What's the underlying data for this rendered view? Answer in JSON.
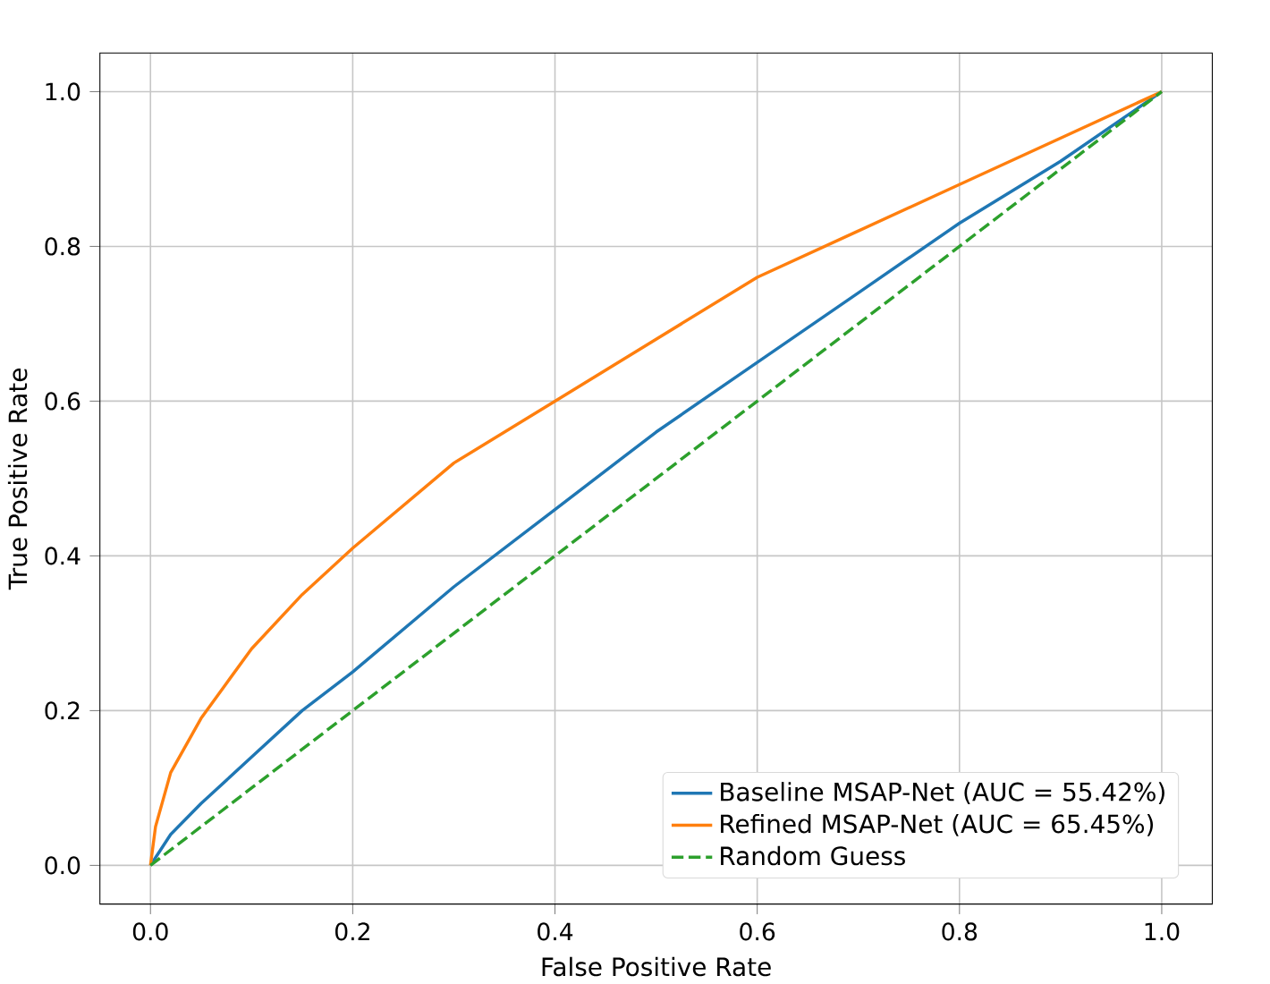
{
  "chart_data": {
    "type": "line",
    "xlabel": "False Positive Rate",
    "ylabel": "True Positive Rate",
    "xlim": [
      -0.05,
      1.05
    ],
    "ylim": [
      -0.05,
      1.05
    ],
    "xticks": [
      {
        "value": 0,
        "label": "0.0"
      },
      {
        "value": 0.2,
        "label": "0.2"
      },
      {
        "value": 0.4,
        "label": "0.4"
      },
      {
        "value": 0.6,
        "label": "0.6"
      },
      {
        "value": 0.8,
        "label": "0.8"
      },
      {
        "value": 1,
        "label": "1.0"
      }
    ],
    "yticks": [
      {
        "value": 0,
        "label": "0.0"
      },
      {
        "value": 0.2,
        "label": "0.2"
      },
      {
        "value": 0.4,
        "label": "0.4"
      },
      {
        "value": 0.6,
        "label": "0.6"
      },
      {
        "value": 0.8,
        "label": "0.8"
      },
      {
        "value": 1,
        "label": "1.0"
      }
    ],
    "grid": true,
    "legend": "bottom right",
    "series": [
      {
        "name": "Baseline MSAP-Net (AUC = 55.42%)",
        "color": "#1f77b4",
        "line_style": "solid",
        "x": [
          0,
          0.005,
          0.02,
          0.05,
          0.1,
          0.15,
          0.2,
          0.3,
          0.4,
          0.5,
          0.6,
          0.7,
          0.8,
          0.9,
          1
        ],
        "values": [
          0,
          0.01,
          0.04,
          0.08,
          0.14,
          0.2,
          0.25,
          0.36,
          0.46,
          0.56,
          0.65,
          0.74,
          0.83,
          0.91,
          1
        ]
      },
      {
        "name": "Refined MSAP-Net (AUC = 65.45%)",
        "color": "#ff7f0e",
        "line_style": "solid",
        "x": [
          0,
          0.005,
          0.02,
          0.05,
          0.1,
          0.15,
          0.2,
          0.3,
          0.4,
          0.5,
          0.6,
          0.7,
          0.8,
          0.9,
          1
        ],
        "values": [
          0,
          0.05,
          0.12,
          0.19,
          0.28,
          0.35,
          0.41,
          0.52,
          0.6,
          0.68,
          0.76,
          0.82,
          0.88,
          0.94,
          1
        ]
      },
      {
        "name": "Random Guess",
        "color": "#2ca02c",
        "line_style": "dashed",
        "x": [
          0,
          1
        ],
        "values": [
          0,
          1
        ]
      }
    ]
  }
}
